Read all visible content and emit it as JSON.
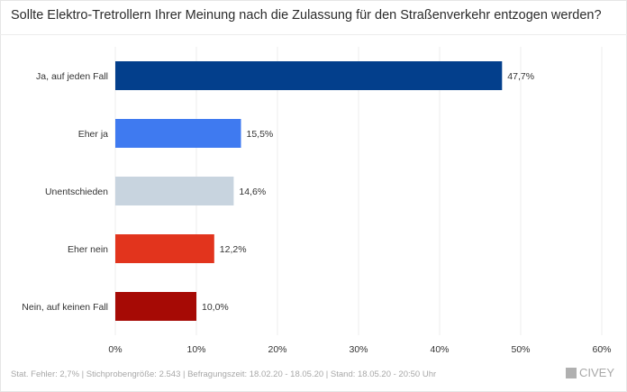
{
  "title": "Sollte Elektro-Tretrollern Ihrer Meinung nach die Zulassung für den Straßenverkehr entzogen werden?",
  "footer": "Stat. Fehler: 2,7% | Stichprobengröße: 2.543 | Befragungszeit: 18.02.20 - 18.05.20 | Stand: 18.05.20 - 20:50 Uhr",
  "logo_text": "CIVEY",
  "chart_data": {
    "type": "bar",
    "orientation": "horizontal",
    "categories": [
      "Ja, auf jeden Fall",
      "Eher ja",
      "Unentschieden",
      "Eher nein",
      "Nein, auf keinen Fall"
    ],
    "values": [
      47.7,
      15.5,
      14.6,
      12.2,
      10.0
    ],
    "value_labels": [
      "47,7%",
      "15,5%",
      "14,6%",
      "12,2%",
      "10,0%"
    ],
    "colors": [
      "#033f8c",
      "#3f7af0",
      "#c8d4df",
      "#e2341d",
      "#a60a05"
    ],
    "xlim": [
      0,
      60
    ],
    "ticks": [
      0,
      10,
      20,
      30,
      40,
      50,
      60
    ],
    "tick_labels": [
      "0%",
      "10%",
      "20%",
      "30%",
      "40%",
      "50%",
      "60%"
    ],
    "grid": true
  }
}
